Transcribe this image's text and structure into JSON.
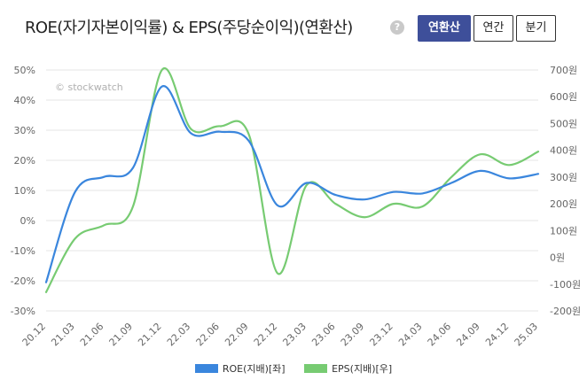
{
  "header": {
    "title": "ROE(자기자본이익률) & EPS(주당순이익)(연환산)",
    "help_icon": "question-icon",
    "help_glyph": "?",
    "buttons": [
      {
        "label": "연환산",
        "active": true
      },
      {
        "label": "연간",
        "active": false
      },
      {
        "label": "분기",
        "active": false
      }
    ]
  },
  "chart_data": {
    "type": "line",
    "watermark": "© stockwatch",
    "categories": [
      "20.12",
      "21.03",
      "21.06",
      "21.09",
      "21.12",
      "22.03",
      "22.06",
      "22.09",
      "22.12",
      "23.03",
      "23.06",
      "23.09",
      "23.12",
      "24.03",
      "24.06",
      "24.09",
      "24.12",
      "25.03"
    ],
    "y_left": {
      "ticks": [
        "50%",
        "40%",
        "30%",
        "20%",
        "10%",
        "0%",
        "-10%",
        "-20%",
        "-30%"
      ],
      "range": [
        -30,
        50
      ],
      "unit": "%"
    },
    "y_right": {
      "ticks": [
        "700원",
        "600원",
        "500원",
        "400원",
        "300원",
        "200원",
        "100원",
        "0원",
        "-100원",
        "-200원"
      ],
      "range": [
        -200,
        700
      ],
      "unit": "원"
    },
    "series": [
      {
        "name": "ROE(지배)[좌]",
        "axis": "left",
        "color": "#3a86dd",
        "values": [
          -20.5,
          9.5,
          14.5,
          17.5,
          44.5,
          29.0,
          29.5,
          26.5,
          5.0,
          12.5,
          8.5,
          7.0,
          9.5,
          9.0,
          12.5,
          16.5,
          14.0,
          15.5
        ]
      },
      {
        "name": "EPS(지배)[우]",
        "axis": "right",
        "color": "#77cb72",
        "values": [
          -130,
          70,
          120,
          190,
          700,
          480,
          490,
          460,
          -60,
          270,
          200,
          150,
          200,
          190,
          300,
          385,
          345,
          395
        ]
      }
    ],
    "grid": true,
    "legend_position": "bottom-center"
  }
}
